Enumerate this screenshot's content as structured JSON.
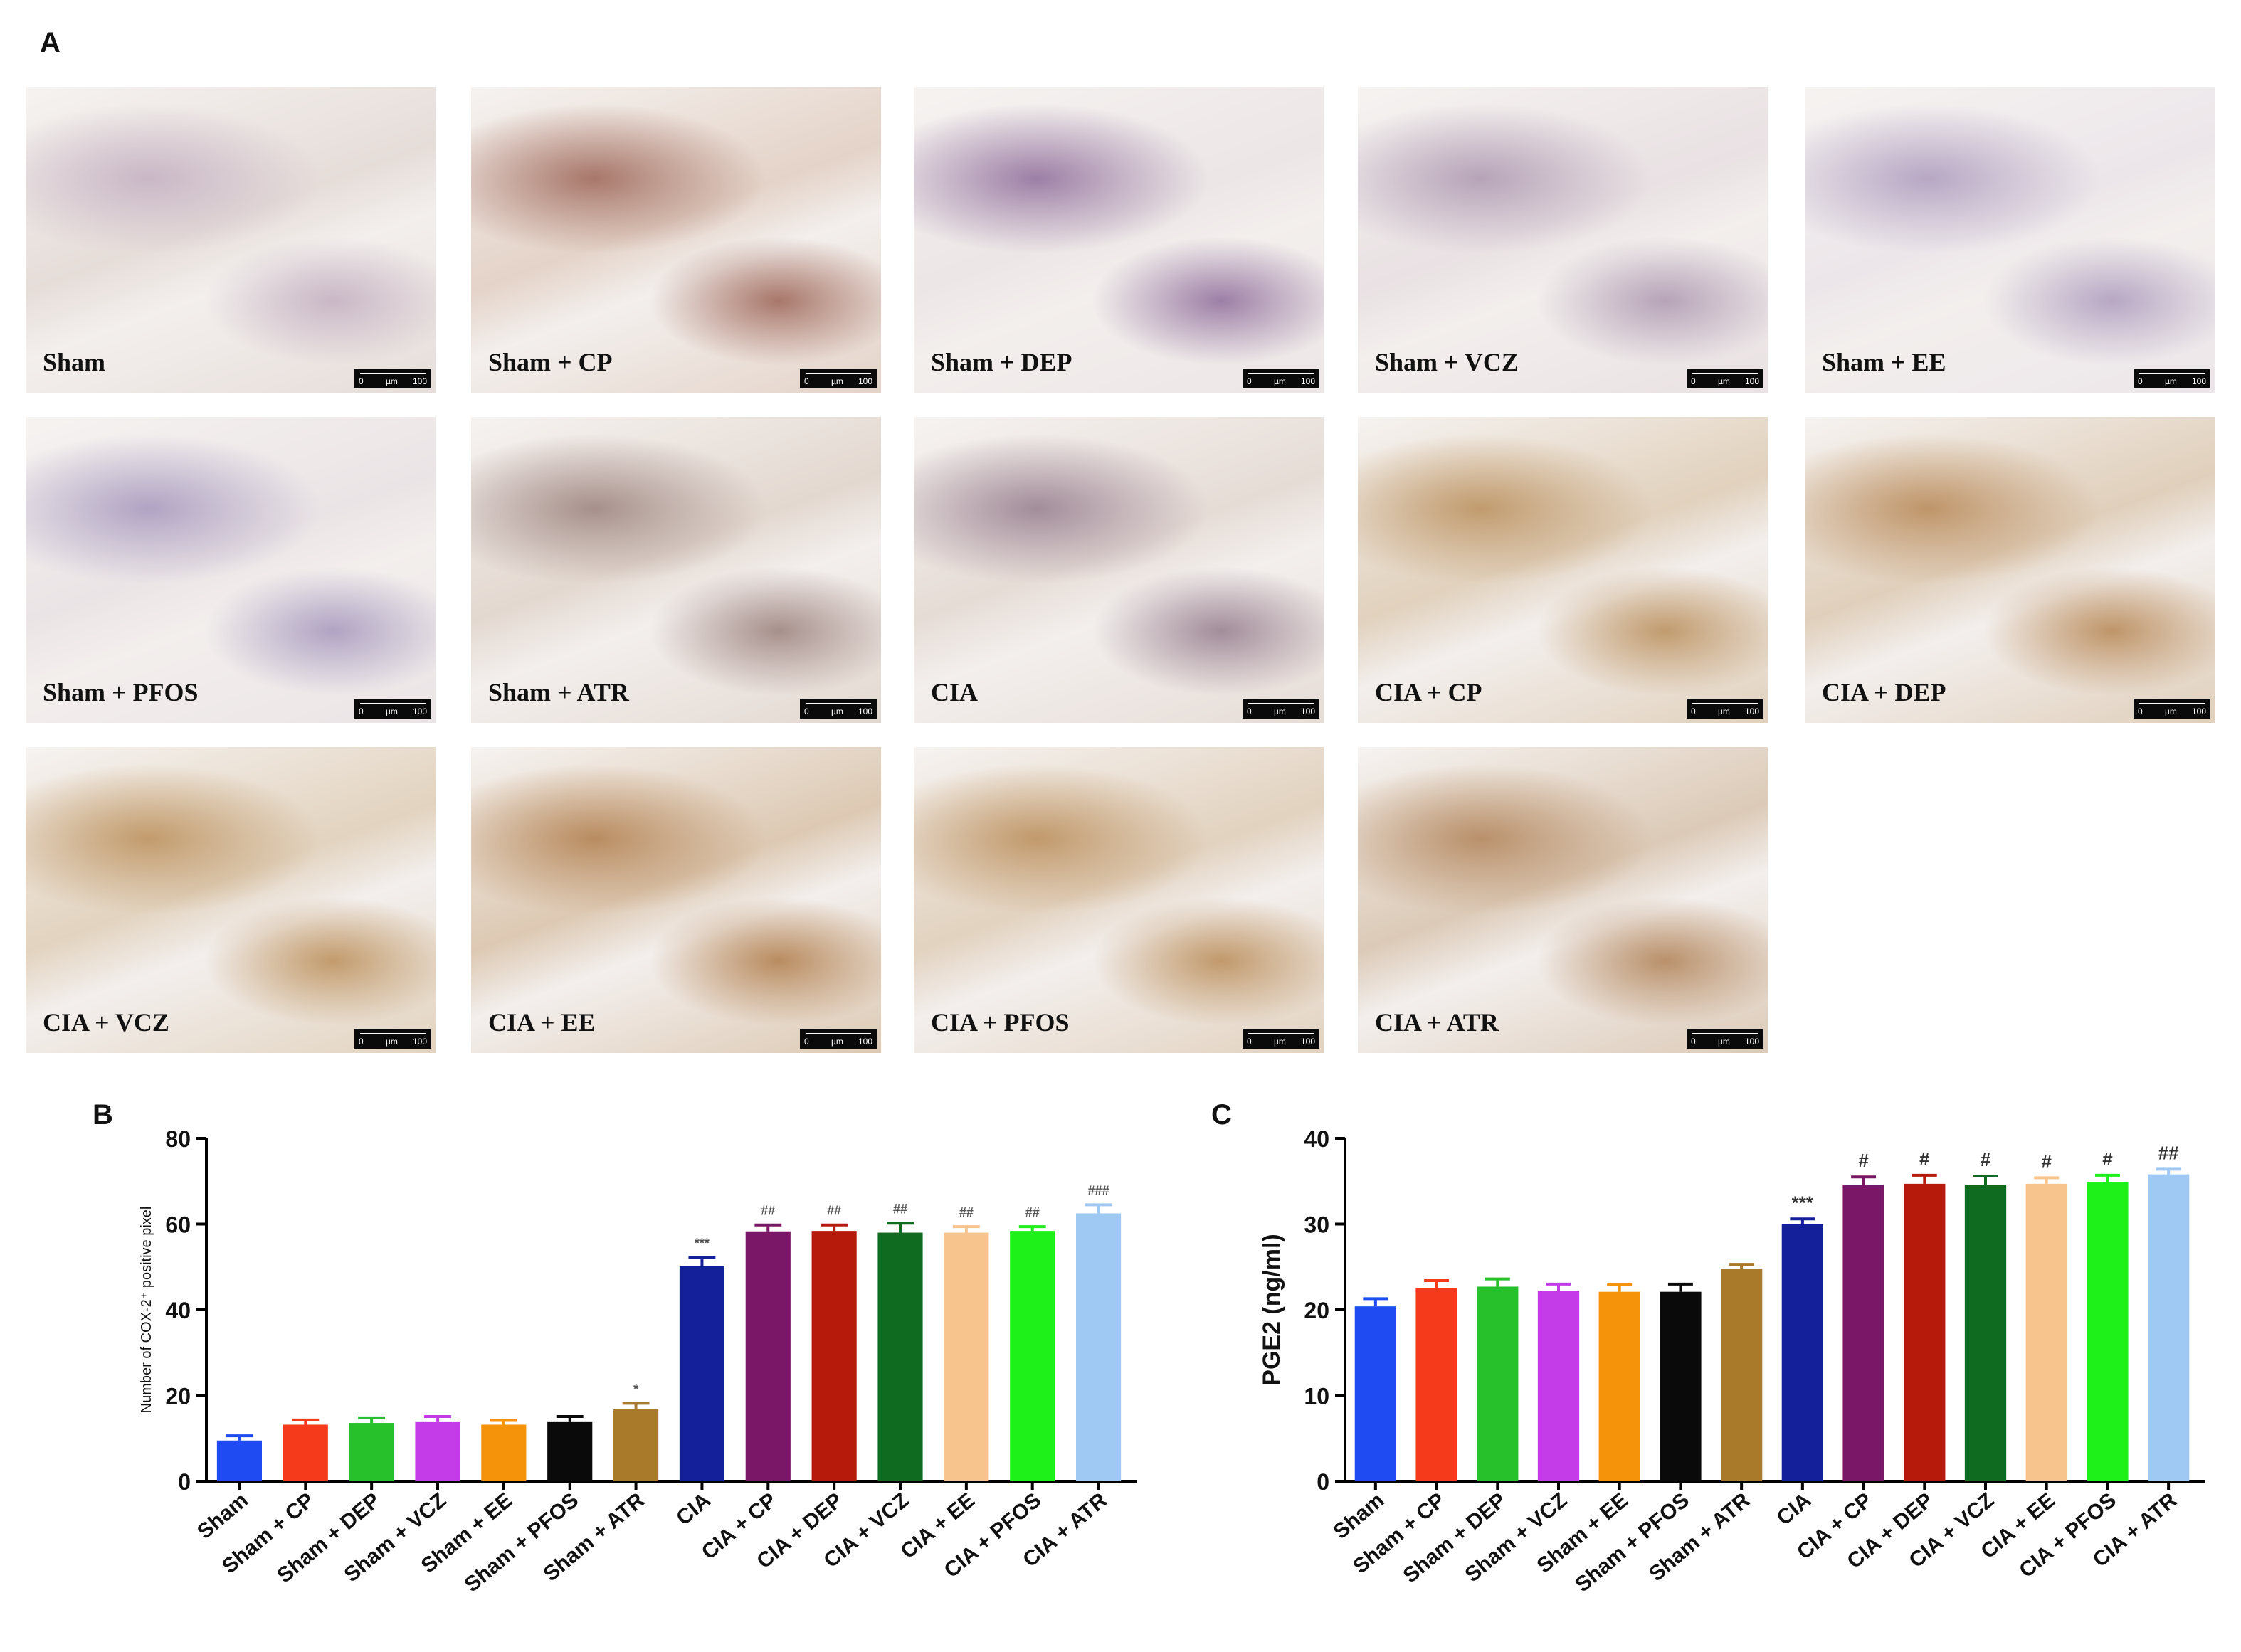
{
  "panels": {
    "a": "A",
    "b": "B",
    "c": "C"
  },
  "micrographs": [
    {
      "label": "Sham",
      "tone": "#e6ddd9",
      "stain": "#c9b7c6"
    },
    {
      "label": "Sham + CP",
      "tone": "#e4d3c8",
      "stain": "#a8776a"
    },
    {
      "label": "Sham + DEP",
      "tone": "#ece6e6",
      "stain": "#9d7fa6"
    },
    {
      "label": "Sham + VCZ",
      "tone": "#e9e1e3",
      "stain": "#b6a3b8"
    },
    {
      "label": "Sham + EE",
      "tone": "#ece6ea",
      "stain": "#b7a7c4"
    },
    {
      "label": "Sham + PFOS",
      "tone": "#ebe4e6",
      "stain": "#b0a3c3"
    },
    {
      "label": "Sham + ATR",
      "tone": "#e3d8d0",
      "stain": "#a7908c"
    },
    {
      "label": "CIA",
      "tone": "#e6dcd6",
      "stain": "#a28c9a"
    },
    {
      "label": "CIA + CP",
      "tone": "#e1d1bd",
      "stain": "#c19b6e"
    },
    {
      "label": "CIA + DEP",
      "tone": "#e0cfbb",
      "stain": "#bf9569"
    },
    {
      "label": "CIA + VCZ",
      "tone": "#e2d3bf",
      "stain": "#c29b6c"
    },
    {
      "label": "CIA + EE",
      "tone": "#ddc9b3",
      "stain": "#b98c60"
    },
    {
      "label": "CIA + PFOS",
      "tone": "#e2d2bf",
      "stain": "#c1996b"
    },
    {
      "label": "CIA + ATR",
      "tone": "#dccab7",
      "stain": "#b9906a"
    }
  ],
  "scalebar": {
    "left": "0",
    "unit": "µm",
    "right": "100"
  },
  "chart_data": [
    {
      "type": "bar",
      "panel": "B",
      "title": "",
      "xlabel": "",
      "ylabel": "Number of COX-2⁺ positive pixel",
      "ylim": [
        0,
        80
      ],
      "yticks": [
        0,
        20,
        40,
        60,
        80
      ],
      "categories": [
        "Sham",
        "Sham + CP",
        "Sham + DEP",
        "Sham + VCZ",
        "Sham + EE",
        "Sham + PFOS",
        "Sham + ATR",
        "CIA",
        "CIA + CP",
        "CIA + DEP",
        "CIA + VCZ",
        "CIA + EE",
        "CIA + PFOS",
        "CIA + ATR"
      ],
      "values": [
        9.5,
        13.2,
        13.6,
        13.8,
        13.2,
        13.8,
        16.8,
        50.2,
        58.3,
        58.4,
        58.0,
        58.0,
        58.4,
        62.5
      ],
      "errors": [
        1.1,
        1.1,
        1.2,
        1.3,
        1.0,
        1.3,
        1.4,
        2.0,
        1.5,
        1.4,
        2.2,
        1.4,
        1.0,
        2.0
      ],
      "annotations": [
        "",
        "",
        "",
        "",
        "",
        "",
        "*",
        "***",
        "##",
        "##",
        "##",
        "##",
        "##",
        "###"
      ],
      "colors": [
        "#1f4cf2",
        "#f53a1b",
        "#26c12b",
        "#c43ce8",
        "#f5930a",
        "#0a0a0a",
        "#a97a2a",
        "#14209a",
        "#7a1766",
        "#b51a0a",
        "#0f6b1f",
        "#f7c48e",
        "#1ef01a",
        "#9fc9f3"
      ],
      "grid": false,
      "legend": "none"
    },
    {
      "type": "bar",
      "panel": "C",
      "title": "",
      "xlabel": "",
      "ylabel": "PGE2 (ng/ml)",
      "ylim": [
        0,
        40
      ],
      "yticks": [
        0,
        10,
        20,
        30,
        40
      ],
      "categories": [
        "Sham",
        "Sham + CP",
        "Sham + DEP",
        "Sham + VCZ",
        "Sham + EE",
        "Sham + PFOS",
        "Sham + ATR",
        "CIA",
        "CIA + CP",
        "CIA + DEP",
        "CIA + VCZ",
        "CIA + EE",
        "CIA + PFOS",
        "CIA + ATR"
      ],
      "values": [
        20.4,
        22.5,
        22.7,
        22.2,
        22.1,
        22.1,
        24.8,
        30.0,
        34.6,
        34.7,
        34.6,
        34.7,
        34.9,
        35.8
      ],
      "errors": [
        0.9,
        0.9,
        0.9,
        0.8,
        0.8,
        0.9,
        0.5,
        0.6,
        0.9,
        1.0,
        1.0,
        0.7,
        0.8,
        0.6
      ],
      "annotations": [
        "",
        "",
        "",
        "",
        "",
        "",
        "",
        "***",
        "#",
        "#",
        "#",
        "#",
        "#",
        "##"
      ],
      "colors": [
        "#1f4cf2",
        "#f53a1b",
        "#26c12b",
        "#c43ce8",
        "#f5930a",
        "#0a0a0a",
        "#a97a2a",
        "#14209a",
        "#7a1766",
        "#b51a0a",
        "#0f6b1f",
        "#f7c48e",
        "#1ef01a",
        "#9fc9f3"
      ],
      "grid": false,
      "legend": "none"
    }
  ]
}
